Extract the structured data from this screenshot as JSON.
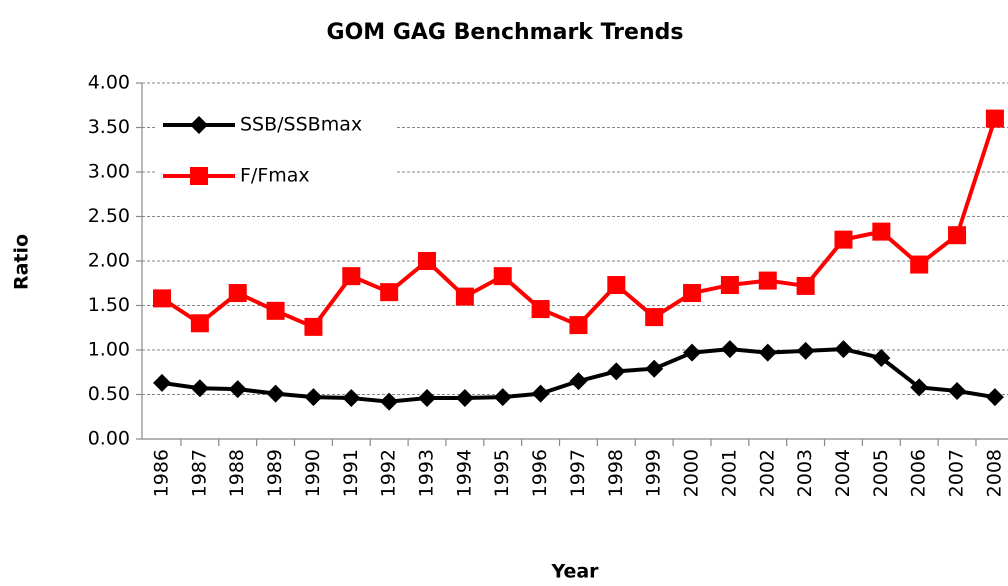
{
  "chart_data": {
    "type": "line",
    "title": "GOM GAG Benchmark Trends",
    "x_label": "Year",
    "y_label": "Ratio",
    "categories": [
      "1986",
      "1987",
      "1988",
      "1989",
      "1990",
      "1991",
      "1992",
      "1993",
      "1994",
      "1995",
      "1996",
      "1997",
      "1998",
      "1999",
      "2000",
      "2001",
      "2002",
      "2003",
      "2004",
      "2005",
      "2006",
      "2007",
      "2008"
    ],
    "series": [
      {
        "name": "SSB/SSBmax",
        "color": "#000000",
        "marker": "diamond",
        "values": [
          0.63,
          0.57,
          0.56,
          0.51,
          0.47,
          0.46,
          0.42,
          0.46,
          0.46,
          0.47,
          0.51,
          0.65,
          0.76,
          0.79,
          0.97,
          1.01,
          0.97,
          0.99,
          1.01,
          0.91,
          0.58,
          0.54,
          0.47
        ]
      },
      {
        "name": "F/Fmax",
        "color": "#ff0000",
        "marker": "square",
        "values": [
          1.58,
          1.3,
          1.64,
          1.44,
          1.26,
          1.83,
          1.65,
          2.0,
          1.6,
          1.83,
          1.46,
          1.28,
          1.73,
          1.37,
          1.64,
          1.73,
          1.78,
          1.72,
          2.24,
          2.33,
          1.96,
          2.29,
          3.6
        ]
      }
    ],
    "ylim": [
      0,
      4
    ],
    "yticks": [
      {
        "value": 0,
        "label": "0.00"
      },
      {
        "value": 0.5,
        "label": "0.50"
      },
      {
        "value": 1,
        "label": "1.00"
      },
      {
        "value": 1.5,
        "label": "1.50"
      },
      {
        "value": 2,
        "label": "2.00"
      },
      {
        "value": 2.5,
        "label": "2.50"
      },
      {
        "value": 3,
        "label": "3.00"
      },
      {
        "value": 3.5,
        "label": "3.50"
      },
      {
        "value": 4,
        "label": "4.00"
      }
    ],
    "grid": true,
    "legend": "upper left"
  }
}
